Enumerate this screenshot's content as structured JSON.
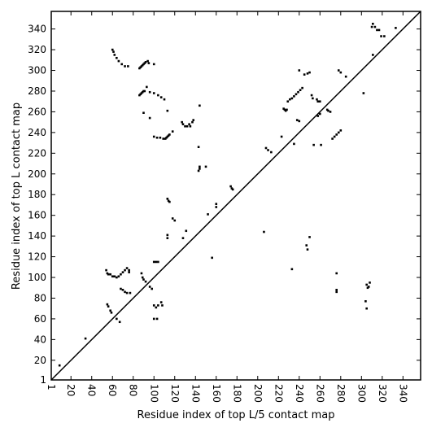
{
  "chart_data": {
    "type": "scatter",
    "xlabel": "Residue index of top L/5 contact map",
    "ylabel": "Residue index of top L contact map",
    "color": "#000000",
    "xlim": [
      1,
      357
    ],
    "ylim": [
      1,
      357
    ],
    "xticks": [
      1,
      20,
      40,
      60,
      80,
      100,
      120,
      140,
      160,
      180,
      200,
      220,
      240,
      260,
      280,
      300,
      320,
      340
    ],
    "yticks": [
      1,
      20,
      40,
      60,
      80,
      100,
      120,
      140,
      160,
      180,
      200,
      220,
      240,
      260,
      280,
      300,
      320,
      340
    ],
    "x": [
      9,
      34,
      60,
      61,
      62,
      64,
      66,
      69,
      72,
      75,
      86,
      87,
      88,
      89,
      90,
      91,
      92,
      94,
      95,
      100,
      86,
      87,
      88,
      89,
      90,
      91,
      93,
      96,
      100,
      104,
      107,
      110,
      113,
      90,
      96,
      100,
      103,
      106,
      109,
      111,
      112,
      113,
      114,
      115,
      118,
      127,
      128,
      130,
      132,
      134,
      135,
      137,
      138,
      144,
      143,
      144,
      144,
      150,
      143,
      174,
      175,
      176,
      160,
      160,
      152,
      113,
      114,
      115,
      118,
      120,
      113,
      113,
      128,
      131,
      156,
      54,
      55,
      56,
      58,
      60,
      62,
      64,
      66,
      68,
      70,
      72,
      74,
      76,
      76,
      68,
      70,
      72,
      74,
      77,
      55,
      56,
      58,
      59,
      64,
      67,
      88,
      89,
      90,
      92,
      96,
      98,
      100,
      102,
      104,
      100,
      102,
      104,
      107,
      108,
      100,
      103,
      225,
      226,
      227,
      228,
      229,
      231,
      233,
      235,
      237,
      239,
      241,
      243,
      240,
      245,
      248,
      250,
      238,
      240,
      252,
      253,
      257,
      258,
      260,
      258,
      260,
      267,
      268,
      270,
      272,
      274,
      276,
      278,
      280,
      261,
      254,
      278,
      280,
      285,
      302,
      311,
      310,
      311,
      313,
      315,
      317,
      319,
      322,
      333,
      208,
      210,
      213,
      223,
      206,
      235,
      233,
      247,
      248,
      250,
      276,
      276,
      276,
      305,
      306,
      307,
      308,
      305,
      304
    ],
    "values": [
      15,
      41,
      320,
      318,
      315,
      312,
      309,
      306,
      304,
      304,
      302,
      303,
      304,
      305,
      306,
      307,
      308,
      309,
      307,
      306,
      276,
      277,
      278,
      279,
      280,
      280,
      284,
      279,
      278,
      276,
      274,
      272,
      261,
      259,
      254,
      236,
      235,
      235,
      234,
      234,
      235,
      236,
      237,
      238,
      241,
      250,
      248,
      246,
      246,
      248,
      246,
      250,
      252,
      266,
      226,
      207,
      205,
      207,
      203,
      188,
      186,
      185,
      171,
      168,
      161,
      176,
      174,
      173,
      157,
      155,
      141,
      138,
      138,
      145,
      119,
      107,
      104,
      103,
      103,
      101,
      101,
      100,
      101,
      103,
      105,
      107,
      109,
      107,
      105,
      89,
      88,
      86,
      85,
      85,
      74,
      72,
      68,
      66,
      60,
      57,
      104,
      100,
      98,
      96,
      91,
      89,
      115,
      115,
      115,
      73,
      71,
      73,
      76,
      73,
      60,
      60,
      263,
      262,
      261,
      262,
      270,
      272,
      273,
      275,
      277,
      279,
      281,
      283,
      300,
      296,
      297,
      298,
      252,
      251,
      276,
      273,
      272,
      270,
      270,
      256,
      258,
      262,
      261,
      260,
      234,
      236,
      238,
      240,
      242,
      228,
      228,
      300,
      298,
      294,
      278,
      315,
      342,
      345,
      342,
      339,
      339,
      333,
      333,
      341,
      225,
      223,
      221,
      236,
      144,
      229,
      108,
      131,
      127,
      139,
      104,
      88,
      86,
      93,
      90,
      91,
      95,
      70,
      77
    ]
  }
}
